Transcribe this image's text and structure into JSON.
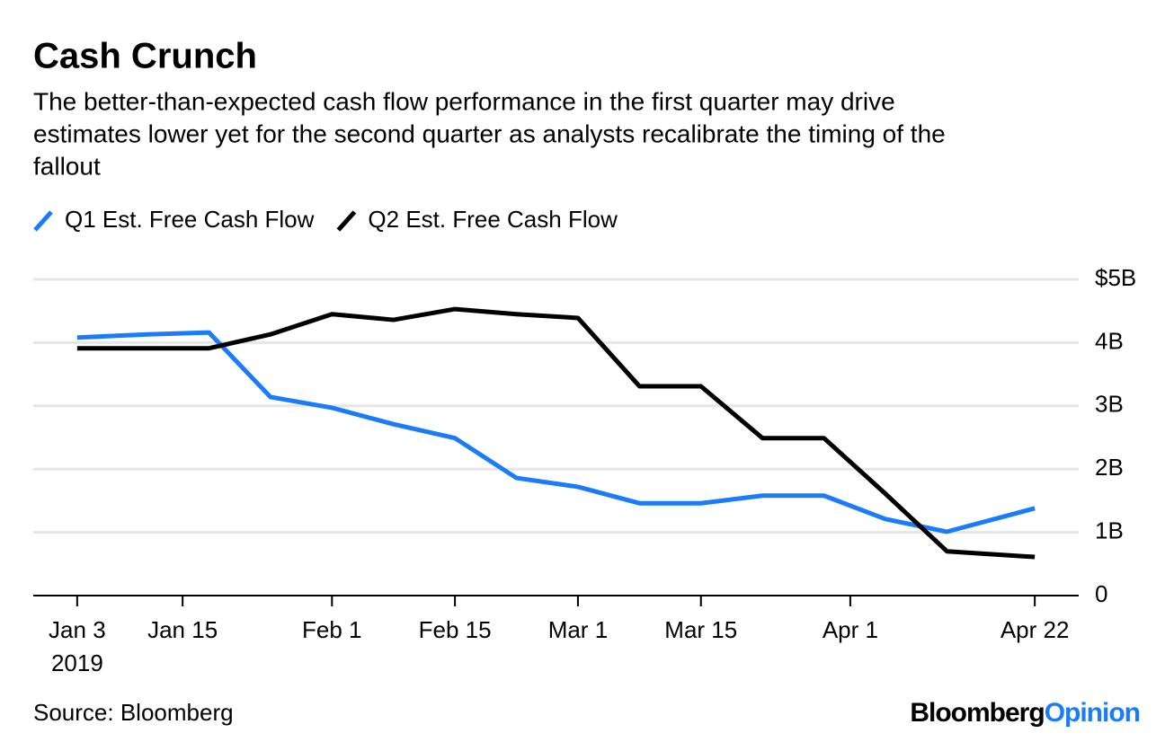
{
  "chart_data": {
    "type": "line",
    "title": "Cash Crunch",
    "subtitle": [
      "The better-than-expected cash flow performance in the first quarter may drive",
      "estimates lower yet for the second quarter as analysts recalibrate the timing of the",
      "fallout"
    ],
    "x": [
      "2019-01-03",
      "2019-01-11",
      "2019-01-18",
      "2019-01-25",
      "2019-02-01",
      "2019-02-08",
      "2019-02-15",
      "2019-02-22",
      "2019-03-01",
      "2019-03-08",
      "2019-03-15",
      "2019-03-22",
      "2019-03-29",
      "2019-04-05",
      "2019-04-12",
      "2019-04-22"
    ],
    "series": [
      {
        "name": "Q1 Est. Free Cash Flow",
        "color": "#1a7cfa",
        "values": [
          4.08,
          4.13,
          4.16,
          3.14,
          2.97,
          2.71,
          2.49,
          1.86,
          1.72,
          1.46,
          1.46,
          1.58,
          1.58,
          1.21,
          1.01,
          1.38
        ]
      },
      {
        "name": "Q2 Est. Free Cash Flow",
        "color": "#000000",
        "values": [
          3.91,
          3.91,
          3.91,
          4.13,
          4.45,
          4.36,
          4.53,
          4.45,
          4.39,
          3.31,
          3.31,
          2.49,
          2.49,
          1.61,
          0.7,
          0.61
        ]
      }
    ],
    "xlim": [
      "2018-12-29",
      "2019-04-27"
    ],
    "xticks": [
      {
        "value": "2019-01-03",
        "label": "Jan 3",
        "sublabel": "2019"
      },
      {
        "value": "2019-01-15",
        "label": "Jan 15"
      },
      {
        "value": "2019-02-01",
        "label": "Feb 1"
      },
      {
        "value": "2019-02-15",
        "label": "Feb 15"
      },
      {
        "value": "2019-03-01",
        "label": "Mar 1"
      },
      {
        "value": "2019-03-15",
        "label": "Mar 15"
      },
      {
        "value": "2019-04-01",
        "label": "Apr 1"
      },
      {
        "value": "2019-04-22",
        "label": "Apr 22"
      }
    ],
    "ylim": [
      0,
      5
    ],
    "yticks": [
      0,
      {
        "value": 1,
        "label": "1B"
      },
      {
        "value": 2,
        "label": "2B"
      },
      {
        "value": 3,
        "label": "3B"
      },
      {
        "value": 4,
        "label": "4B"
      },
      {
        "value": 5,
        "label": "$5B"
      }
    ],
    "grid": true,
    "source": "Source: Bloomberg",
    "brand": {
      "name": "Bloomberg",
      "suffix": "Opinion"
    }
  }
}
